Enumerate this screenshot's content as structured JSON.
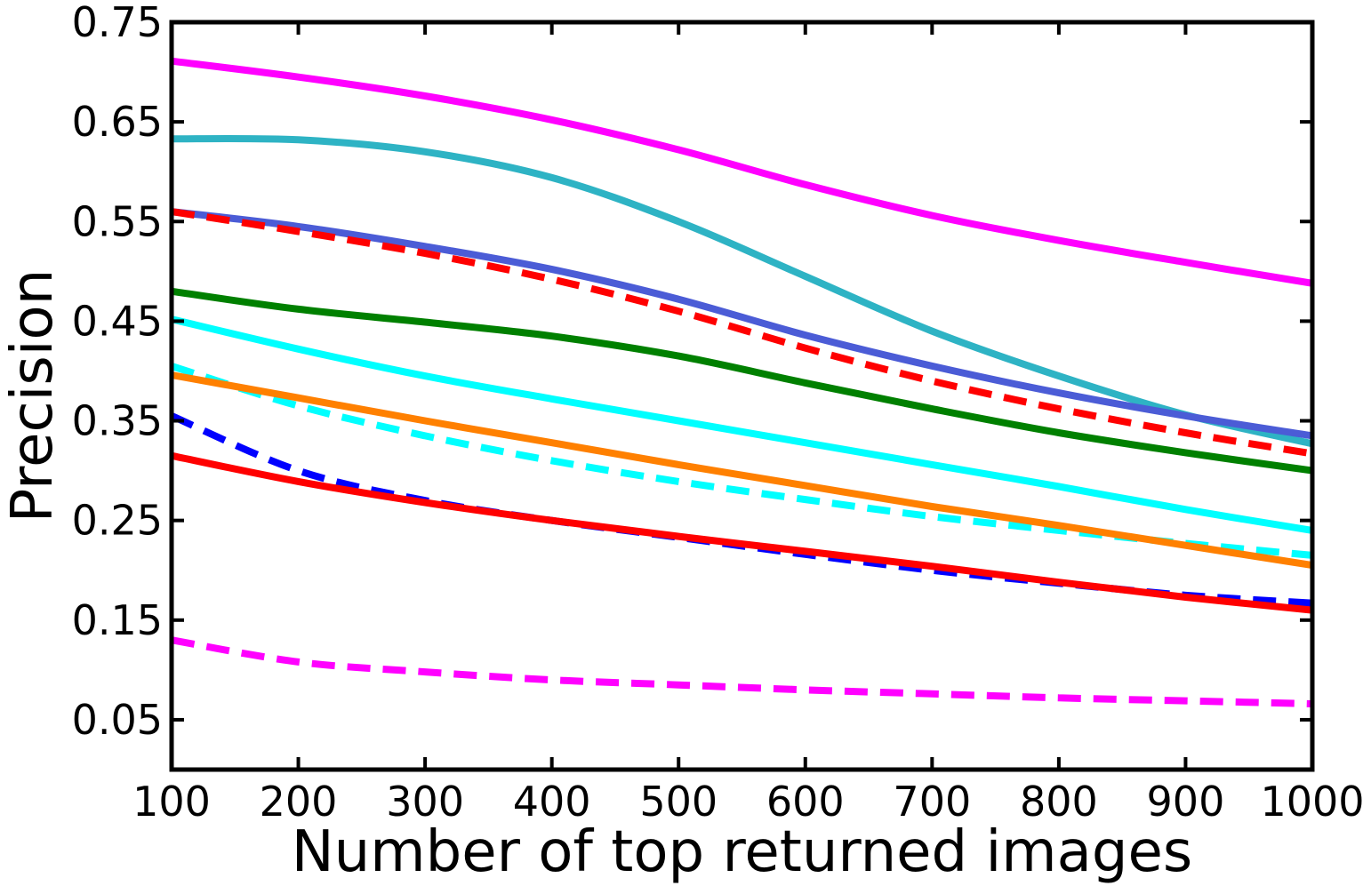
{
  "chart_data": {
    "type": "line",
    "title": "",
    "xlabel": "Number of top returned images",
    "ylabel": "Precision",
    "xlim": [
      100,
      1000
    ],
    "ylim": [
      0,
      0.75
    ],
    "xticks": [
      100,
      200,
      300,
      400,
      500,
      600,
      700,
      800,
      900,
      1000
    ],
    "yticks": [
      0.05,
      0.15,
      0.25,
      0.35,
      0.45,
      0.55,
      0.65,
      0.75
    ],
    "xtick_labels": [
      "100",
      "200",
      "300",
      "400",
      "500",
      "600",
      "700",
      "800",
      "900",
      "1000"
    ],
    "ytick_labels": [
      "0.05",
      "0.15",
      "0.25",
      "0.35",
      "0.45",
      "0.55",
      "0.65",
      "0.75"
    ],
    "grid": false,
    "legend": "none",
    "x": [
      100,
      200,
      300,
      400,
      500,
      600,
      700,
      800,
      900,
      1000
    ],
    "series": [
      {
        "color": "#ff00ff",
        "style": "solid",
        "values": [
          0.711,
          0.695,
          0.676,
          0.652,
          0.622,
          0.587,
          0.556,
          0.531,
          0.509,
          0.488
        ]
      },
      {
        "color": "#2eb3c4",
        "style": "solid",
        "values": [
          0.633,
          0.632,
          0.62,
          0.594,
          0.55,
          0.495,
          0.44,
          0.395,
          0.356,
          0.327
        ]
      },
      {
        "color": "#4b5cd6",
        "style": "solid",
        "values": [
          0.56,
          0.545,
          0.525,
          0.502,
          0.472,
          0.436,
          0.405,
          0.378,
          0.355,
          0.335
        ]
      },
      {
        "color": "#ff0000",
        "style": "dashed",
        "values": [
          0.56,
          0.54,
          0.518,
          0.492,
          0.46,
          0.423,
          0.39,
          0.362,
          0.338,
          0.317
        ]
      },
      {
        "color": "#008000",
        "style": "solid",
        "values": [
          0.48,
          0.462,
          0.449,
          0.435,
          0.415,
          0.388,
          0.362,
          0.338,
          0.318,
          0.3
        ]
      },
      {
        "color": "#00ffff",
        "style": "solid",
        "values": [
          0.452,
          0.422,
          0.395,
          0.372,
          0.35,
          0.328,
          0.306,
          0.284,
          0.261,
          0.24
        ]
      },
      {
        "color": "#00ffff",
        "style": "dashed",
        "values": [
          0.405,
          0.365,
          0.335,
          0.31,
          0.289,
          0.271,
          0.254,
          0.24,
          0.227,
          0.215
        ]
      },
      {
        "color": "#ff8000",
        "style": "solid",
        "values": [
          0.396,
          0.373,
          0.35,
          0.328,
          0.306,
          0.285,
          0.264,
          0.245,
          0.225,
          0.205
        ]
      },
      {
        "color": "#0000ff",
        "style": "dashed",
        "values": [
          0.355,
          0.3,
          0.27,
          0.25,
          0.233,
          0.216,
          0.2,
          0.187,
          0.175,
          0.167
        ]
      },
      {
        "color": "#ff0000",
        "style": "solid",
        "values": [
          0.315,
          0.289,
          0.268,
          0.25,
          0.234,
          0.219,
          0.204,
          0.188,
          0.173,
          0.16
        ]
      },
      {
        "color": "#ff00ff",
        "style": "dashed",
        "values": [
          0.13,
          0.108,
          0.098,
          0.09,
          0.085,
          0.08,
          0.076,
          0.072,
          0.069,
          0.066
        ]
      }
    ]
  }
}
